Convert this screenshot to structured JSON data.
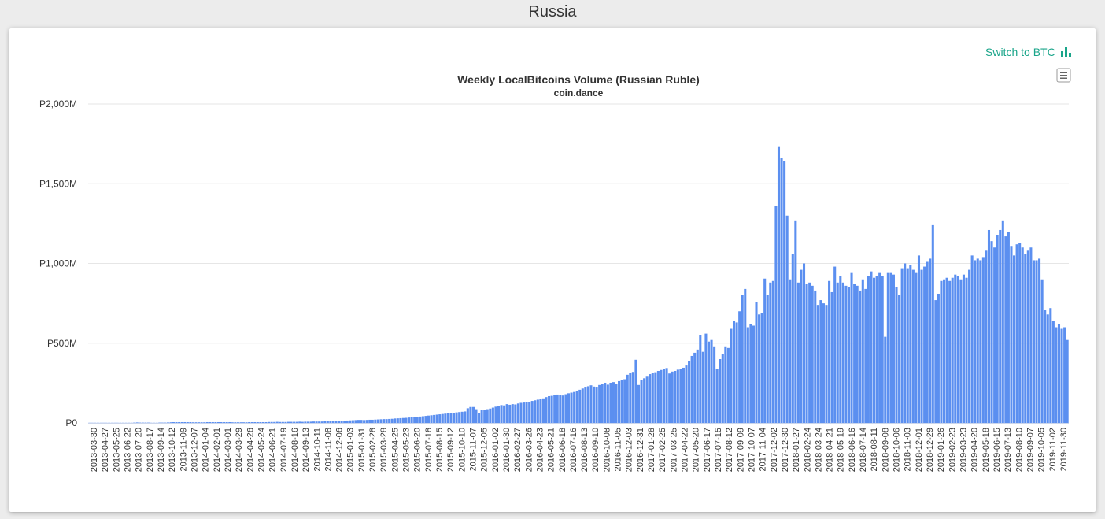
{
  "page": {
    "title": "Russia"
  },
  "toolbar": {
    "switch_label": "Switch to BTC",
    "switch_icon": "bar-chart-icon",
    "menu_icon": "hamburger-menu-icon"
  },
  "colors": {
    "bar": "#5b8ff0",
    "bar_stroke": "#4a7fe6",
    "accent": "#1aa58a",
    "grid": "#e6e6e6"
  },
  "chart_data": {
    "type": "bar",
    "title": "Weekly LocalBitcoins Volume (Russian Ruble)",
    "subtitle": "coin.dance",
    "xlabel": "",
    "ylabel": "",
    "ylim": [
      0,
      2000
    ],
    "value_unit": "M",
    "yticks": [
      {
        "v": 0,
        "label": "P0"
      },
      {
        "v": 500,
        "label": "P500M"
      },
      {
        "v": 1000,
        "label": "P1,000M"
      },
      {
        "v": 1500,
        "label": "P1,500M"
      },
      {
        "v": 2000,
        "label": "P2,000M"
      }
    ],
    "grid": true,
    "legend": "none",
    "start_date": "2013-03-30",
    "xtick_labels": [
      "2013-03-30",
      "2013-04-27",
      "2013-05-25",
      "2013-06-22",
      "2013-07-20",
      "2013-08-17",
      "2013-09-14",
      "2013-10-12",
      "2013-11-09",
      "2013-12-07",
      "2014-01-04",
      "2014-02-01",
      "2014-03-01",
      "2014-03-29",
      "2014-04-26",
      "2014-05-24",
      "2014-06-21",
      "2014-07-19",
      "2014-08-16",
      "2014-09-13",
      "2014-10-11",
      "2014-11-08",
      "2014-12-06",
      "2015-01-03",
      "2015-01-31",
      "2015-02-28",
      "2015-03-28",
      "2015-04-25",
      "2015-05-23",
      "2015-06-20",
      "2015-07-18",
      "2015-08-15",
      "2015-09-12",
      "2015-10-10",
      "2015-11-07",
      "2015-12-05",
      "2016-01-02",
      "2016-01-30",
      "2016-02-27",
      "2016-03-26",
      "2016-04-23",
      "2016-05-21",
      "2016-06-18",
      "2016-07-16",
      "2016-08-13",
      "2016-09-10",
      "2016-10-08",
      "2016-11-05",
      "2016-12-03",
      "2016-12-31",
      "2017-01-28",
      "2017-02-25",
      "2017-03-25",
      "2017-04-22",
      "2017-05-20",
      "2017-06-17",
      "2017-07-15",
      "2017-08-12",
      "2017-09-09",
      "2017-10-07",
      "2017-11-04",
      "2017-12-02",
      "2017-12-30",
      "2018-01-27",
      "2018-02-24",
      "2018-03-24",
      "2018-04-21",
      "2018-05-19",
      "2018-06-16",
      "2018-07-14",
      "2018-08-11",
      "2018-09-08",
      "2018-10-06",
      "2018-11-03",
      "2018-12-01",
      "2018-12-29",
      "2019-01-26",
      "2019-02-23",
      "2019-03-23",
      "2019-04-20",
      "2019-05-18",
      "2019-06-15",
      "2019-07-13",
      "2019-08-10",
      "2019-09-07",
      "2019-10-05",
      "2019-11-02",
      "2019-11-30"
    ],
    "values": [
      1,
      1,
      1,
      1,
      1,
      1,
      1,
      1,
      1,
      1,
      1,
      1,
      1,
      1,
      1,
      1,
      2,
      3,
      2,
      2,
      2,
      2,
      1,
      1,
      1,
      2,
      2,
      2,
      3,
      4,
      5,
      5,
      5,
      5,
      5,
      5,
      5,
      4,
      4,
      4,
      4,
      4,
      5,
      5,
      5,
      5,
      5,
      5,
      5,
      5,
      5,
      4,
      4,
      4,
      4,
      4,
      4,
      5,
      5,
      5,
      5,
      5,
      5,
      5,
      6,
      6,
      6,
      7,
      6,
      6,
      6,
      7,
      7,
      7,
      7,
      8,
      7,
      8,
      8,
      8,
      9,
      9,
      9,
      9,
      10,
      10,
      10,
      12,
      12,
      13,
      13,
      14,
      15,
      16,
      17,
      18,
      19,
      19,
      18,
      19,
      20,
      20,
      21,
      22,
      23,
      24,
      24,
      25,
      26,
      28,
      29,
      30,
      31,
      32,
      34,
      35,
      36,
      38,
      40,
      42,
      44,
      46,
      48,
      50,
      52,
      54,
      56,
      58,
      60,
      62,
      64,
      66,
      68,
      70,
      72,
      92,
      100,
      100,
      86,
      62,
      80,
      82,
      86,
      90,
      96,
      102,
      108,
      112,
      110,
      118,
      114,
      118,
      116,
      122,
      126,
      128,
      132,
      130,
      138,
      142,
      146,
      150,
      154,
      162,
      168,
      170,
      174,
      178,
      176,
      172,
      180,
      186,
      190,
      194,
      198,
      208,
      216,
      222,
      230,
      236,
      228,
      222,
      238,
      246,
      252,
      240,
      252,
      256,
      246,
      262,
      270,
      274,
      302,
      316,
      320,
      396,
      238,
      268,
      280,
      290,
      306,
      312,
      318,
      326,
      332,
      338,
      344,
      310,
      322,
      326,
      334,
      336,
      346,
      360,
      386,
      420,
      440,
      460,
      550,
      446,
      560,
      510,
      520,
      480,
      340,
      400,
      430,
      480,
      470,
      590,
      640,
      630,
      700,
      800,
      840,
      600,
      620,
      610,
      760,
      680,
      690,
      905,
      800,
      880,
      890,
      1360,
      1730,
      1660,
      1640,
      1300,
      900,
      1060,
      1270,
      880,
      960,
      1000,
      870,
      880,
      860,
      830,
      740,
      770,
      750,
      740,
      890,
      820,
      980,
      880,
      920,
      880,
      860,
      850,
      940,
      870,
      860,
      830,
      900,
      840,
      920,
      950,
      910,
      920,
      940,
      920,
      540,
      940,
      940,
      930,
      850,
      800,
      970,
      1000,
      970,
      990,
      960,
      940,
      1050,
      960,
      980,
      1010,
      1030,
      1240,
      770,
      810,
      890,
      900,
      910,
      890,
      910,
      930,
      920,
      900,
      930,
      910,
      960,
      1050,
      1020,
      1030,
      1020,
      1040,
      1080,
      1210,
      1140,
      1100,
      1180,
      1210,
      1270,
      1170,
      1200,
      1110,
      1050,
      1120,
      1130,
      1100,
      1060,
      1080,
      1100,
      1020,
      1020,
      1030,
      900,
      710,
      680,
      720,
      640,
      600,
      620,
      590,
      600,
      520
    ]
  }
}
